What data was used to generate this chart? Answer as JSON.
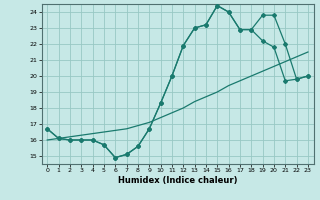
{
  "title": "",
  "xlabel": "Humidex (Indice chaleur)",
  "xlim": [
    -0.5,
    23.5
  ],
  "ylim": [
    14.5,
    24.5
  ],
  "xticks": [
    0,
    1,
    2,
    3,
    4,
    5,
    6,
    7,
    8,
    9,
    10,
    11,
    12,
    13,
    14,
    15,
    16,
    17,
    18,
    19,
    20,
    21,
    22,
    23
  ],
  "yticks": [
    15,
    16,
    17,
    18,
    19,
    20,
    21,
    22,
    23,
    24
  ],
  "background_color": "#c6e8e6",
  "grid_color": "#98c8c4",
  "line_color": "#1a7a6e",
  "line1_x": [
    0,
    1,
    2,
    3,
    4,
    5,
    6,
    7,
    8,
    9,
    10,
    11,
    12,
    13,
    14,
    15,
    16,
    17,
    18,
    19,
    20,
    21,
    22,
    23
  ],
  "line1_y": [
    16.7,
    16.1,
    16.0,
    16.0,
    16.0,
    15.7,
    14.9,
    15.1,
    15.6,
    16.7,
    18.3,
    20.0,
    21.9,
    23.0,
    23.2,
    24.4,
    24.0,
    22.9,
    22.9,
    22.2,
    21.8,
    19.7,
    19.8,
    20.0
  ],
  "line2_x": [
    0,
    1,
    2,
    3,
    4,
    5,
    6,
    7,
    8,
    9,
    10,
    11,
    12,
    13,
    14,
    15,
    16,
    17,
    18,
    19,
    20,
    21,
    22,
    23
  ],
  "line2_y": [
    16.7,
    16.1,
    16.0,
    16.0,
    16.0,
    15.7,
    14.9,
    15.1,
    15.6,
    16.7,
    18.3,
    20.0,
    21.9,
    23.0,
    23.2,
    24.4,
    24.0,
    22.9,
    22.9,
    23.8,
    23.8,
    22.0,
    19.8,
    20.0
  ],
  "line3_x": [
    0,
    1,
    2,
    3,
    4,
    5,
    6,
    7,
    8,
    9,
    10,
    11,
    12,
    13,
    14,
    15,
    16,
    17,
    18,
    19,
    20,
    21,
    22,
    23
  ],
  "line3_y": [
    16.0,
    16.1,
    16.2,
    16.3,
    16.4,
    16.5,
    16.6,
    16.7,
    16.9,
    17.1,
    17.4,
    17.7,
    18.0,
    18.4,
    18.7,
    19.0,
    19.4,
    19.7,
    20.0,
    20.3,
    20.6,
    20.9,
    21.2,
    21.5
  ],
  "marker_size": 2.0,
  "line_width": 0.9,
  "tick_fontsize": 4.5,
  "xlabel_fontsize": 6.0
}
